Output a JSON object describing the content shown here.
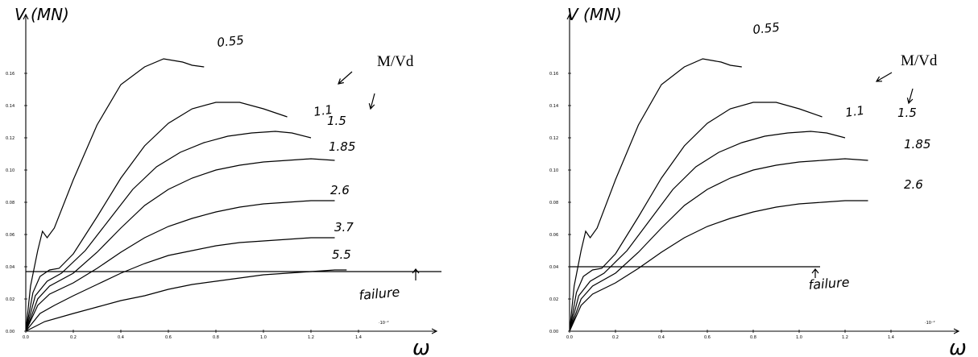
{
  "chart_data": [
    {
      "type": "line",
      "ylabel": "V (MN)",
      "xlabel": "ω",
      "x_multiplier": "·10⁻²",
      "legend_title": "M/Vd",
      "failure_label": "failure",
      "failure_v": 0.037,
      "xlim": [
        0,
        1.5
      ],
      "ylim": [
        0,
        0.17
      ],
      "x_ticks": [
        "0.0",
        "0.2",
        "0.4",
        "0.6",
        "0.8",
        "1.0",
        "1.2",
        "1.4"
      ],
      "y_ticks": [
        "0.00",
        "0.02",
        "0.04",
        "0.06",
        "0.08",
        "0.10",
        "0.12",
        "0.14",
        "0.16"
      ],
      "series": [
        {
          "name": "0.55",
          "points": [
            [
              0,
              0
            ],
            [
              0.02,
              0.028
            ],
            [
              0.05,
              0.05
            ],
            [
              0.07,
              0.062
            ],
            [
              0.09,
              0.058
            ],
            [
              0.12,
              0.064
            ],
            [
              0.2,
              0.094
            ],
            [
              0.3,
              0.128
            ],
            [
              0.4,
              0.153
            ],
            [
              0.5,
              0.164
            ],
            [
              0.58,
              0.169
            ],
            [
              0.62,
              0.168
            ],
            [
              0.66,
              0.167
            ],
            [
              0.7,
              0.165
            ],
            [
              0.75,
              0.164
            ]
          ]
        },
        {
          "name": "1.1",
          "points": [
            [
              0,
              0
            ],
            [
              0.03,
              0.024
            ],
            [
              0.06,
              0.034
            ],
            [
              0.1,
              0.038
            ],
            [
              0.14,
              0.039
            ],
            [
              0.2,
              0.048
            ],
            [
              0.3,
              0.071
            ],
            [
              0.4,
              0.095
            ],
            [
              0.5,
              0.115
            ],
            [
              0.6,
              0.129
            ],
            [
              0.7,
              0.138
            ],
            [
              0.8,
              0.142
            ],
            [
              0.9,
              0.142
            ],
            [
              1.0,
              0.138
            ],
            [
              1.1,
              0.133
            ]
          ]
        },
        {
          "name": "1.5",
          "points": [
            [
              0,
              0
            ],
            [
              0.04,
              0.022
            ],
            [
              0.09,
              0.031
            ],
            [
              0.15,
              0.036
            ],
            [
              0.25,
              0.05
            ],
            [
              0.35,
              0.069
            ],
            [
              0.45,
              0.088
            ],
            [
              0.55,
              0.102
            ],
            [
              0.65,
              0.111
            ],
            [
              0.75,
              0.117
            ],
            [
              0.85,
              0.121
            ],
            [
              0.95,
              0.123
            ],
            [
              1.05,
              0.124
            ],
            [
              1.12,
              0.123
            ],
            [
              1.2,
              0.12
            ]
          ]
        },
        {
          "name": "1.85",
          "points": [
            [
              0,
              0
            ],
            [
              0.05,
              0.02
            ],
            [
              0.1,
              0.028
            ],
            [
              0.2,
              0.036
            ],
            [
              0.3,
              0.049
            ],
            [
              0.4,
              0.064
            ],
            [
              0.5,
              0.078
            ],
            [
              0.6,
              0.088
            ],
            [
              0.7,
              0.095
            ],
            [
              0.8,
              0.1
            ],
            [
              0.9,
              0.103
            ],
            [
              1.0,
              0.105
            ],
            [
              1.1,
              0.106
            ],
            [
              1.2,
              0.107
            ],
            [
              1.3,
              0.106
            ]
          ]
        },
        {
          "name": "2.6",
          "points": [
            [
              0,
              0
            ],
            [
              0.05,
              0.016
            ],
            [
              0.1,
              0.023
            ],
            [
              0.2,
              0.03
            ],
            [
              0.3,
              0.039
            ],
            [
              0.4,
              0.049
            ],
            [
              0.5,
              0.058
            ],
            [
              0.6,
              0.065
            ],
            [
              0.7,
              0.07
            ],
            [
              0.8,
              0.074
            ],
            [
              0.9,
              0.077
            ],
            [
              1.0,
              0.079
            ],
            [
              1.1,
              0.08
            ],
            [
              1.2,
              0.081
            ],
            [
              1.3,
              0.081
            ]
          ]
        },
        {
          "name": "3.7",
          "points": [
            [
              0,
              0
            ],
            [
              0.06,
              0.011
            ],
            [
              0.12,
              0.016
            ],
            [
              0.2,
              0.022
            ],
            [
              0.3,
              0.029
            ],
            [
              0.4,
              0.036
            ],
            [
              0.5,
              0.042
            ],
            [
              0.6,
              0.047
            ],
            [
              0.7,
              0.05
            ],
            [
              0.8,
              0.053
            ],
            [
              0.9,
              0.055
            ],
            [
              1.0,
              0.056
            ],
            [
              1.1,
              0.057
            ],
            [
              1.2,
              0.058
            ],
            [
              1.3,
              0.058
            ]
          ]
        },
        {
          "name": "5.5",
          "points": [
            [
              0,
              0
            ],
            [
              0.08,
              0.006
            ],
            [
              0.2,
              0.011
            ],
            [
              0.3,
              0.015
            ],
            [
              0.4,
              0.019
            ],
            [
              0.5,
              0.022
            ],
            [
              0.6,
              0.026
            ],
            [
              0.7,
              0.029
            ],
            [
              0.8,
              0.031
            ],
            [
              0.9,
              0.033
            ],
            [
              1.0,
              0.035
            ],
            [
              1.1,
              0.036
            ],
            [
              1.2,
              0.037
            ],
            [
              1.3,
              0.038
            ],
            [
              1.35,
              0.038
            ]
          ]
        }
      ]
    },
    {
      "type": "line",
      "ylabel": "V (MN)",
      "xlabel": "ω",
      "x_multiplier": "·10⁻²",
      "legend_title": "M/Vd",
      "failure_label": "failure",
      "failure_v": 0.04,
      "xlim": [
        0,
        1.5
      ],
      "ylim": [
        0,
        0.17
      ],
      "x_ticks": [
        "0.0",
        "0.2",
        "0.4",
        "0.6",
        "0.8",
        "1.0",
        "1.2",
        "1.4"
      ],
      "y_ticks": [
        "0.00",
        "0.02",
        "0.04",
        "0.06",
        "0.08",
        "0.10",
        "0.12",
        "0.14",
        "0.16"
      ],
      "series": [
        {
          "name": "0.55",
          "points": [
            [
              0,
              0
            ],
            [
              0.02,
              0.028
            ],
            [
              0.05,
              0.05
            ],
            [
              0.07,
              0.062
            ],
            [
              0.09,
              0.058
            ],
            [
              0.12,
              0.064
            ],
            [
              0.2,
              0.094
            ],
            [
              0.3,
              0.128
            ],
            [
              0.4,
              0.153
            ],
            [
              0.5,
              0.164
            ],
            [
              0.58,
              0.169
            ],
            [
              0.62,
              0.168
            ],
            [
              0.66,
              0.167
            ],
            [
              0.7,
              0.165
            ],
            [
              0.75,
              0.164
            ]
          ]
        },
        {
          "name": "1.1",
          "points": [
            [
              0,
              0
            ],
            [
              0.03,
              0.024
            ],
            [
              0.06,
              0.034
            ],
            [
              0.1,
              0.038
            ],
            [
              0.14,
              0.039
            ],
            [
              0.2,
              0.048
            ],
            [
              0.3,
              0.071
            ],
            [
              0.4,
              0.095
            ],
            [
              0.5,
              0.115
            ],
            [
              0.6,
              0.129
            ],
            [
              0.7,
              0.138
            ],
            [
              0.8,
              0.142
            ],
            [
              0.9,
              0.142
            ],
            [
              1.0,
              0.138
            ],
            [
              1.1,
              0.133
            ]
          ]
        },
        {
          "name": "1.5",
          "points": [
            [
              0,
              0
            ],
            [
              0.04,
              0.022
            ],
            [
              0.09,
              0.031
            ],
            [
              0.15,
              0.036
            ],
            [
              0.25,
              0.05
            ],
            [
              0.35,
              0.069
            ],
            [
              0.45,
              0.088
            ],
            [
              0.55,
              0.102
            ],
            [
              0.65,
              0.111
            ],
            [
              0.75,
              0.117
            ],
            [
              0.85,
              0.121
            ],
            [
              0.95,
              0.123
            ],
            [
              1.05,
              0.124
            ],
            [
              1.12,
              0.123
            ],
            [
              1.2,
              0.12
            ]
          ]
        },
        {
          "name": "1.85",
          "points": [
            [
              0,
              0
            ],
            [
              0.05,
              0.02
            ],
            [
              0.1,
              0.028
            ],
            [
              0.2,
              0.036
            ],
            [
              0.3,
              0.049
            ],
            [
              0.4,
              0.064
            ],
            [
              0.5,
              0.078
            ],
            [
              0.6,
              0.088
            ],
            [
              0.7,
              0.095
            ],
            [
              0.8,
              0.1
            ],
            [
              0.9,
              0.103
            ],
            [
              1.0,
              0.105
            ],
            [
              1.1,
              0.106
            ],
            [
              1.2,
              0.107
            ],
            [
              1.3,
              0.106
            ]
          ]
        },
        {
          "name": "2.6",
          "points": [
            [
              0,
              0
            ],
            [
              0.05,
              0.016
            ],
            [
              0.1,
              0.023
            ],
            [
              0.2,
              0.03
            ],
            [
              0.3,
              0.039
            ],
            [
              0.4,
              0.049
            ],
            [
              0.5,
              0.058
            ],
            [
              0.6,
              0.065
            ],
            [
              0.7,
              0.07
            ],
            [
              0.8,
              0.074
            ],
            [
              0.9,
              0.077
            ],
            [
              1.0,
              0.079
            ],
            [
              1.1,
              0.08
            ],
            [
              1.2,
              0.081
            ],
            [
              1.3,
              0.081
            ]
          ]
        }
      ]
    }
  ]
}
